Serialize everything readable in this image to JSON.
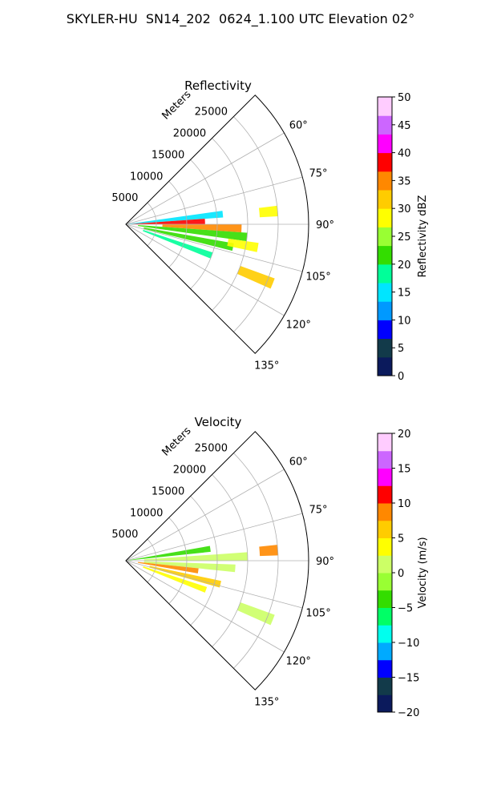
{
  "figure": {
    "title": "SKYLER-HU  SN14_202  0624_1.100 UTC Elevation 02°"
  },
  "chart_data": [
    {
      "type": "heatmap",
      "projection": "polar-sector",
      "title": "Reflectivity",
      "range_label": "Meters",
      "range_ticks": [
        5000,
        10000,
        15000,
        20000,
        25000
      ],
      "range_max": 30000,
      "azimuth_range": [
        45,
        135
      ],
      "azimuth_ticks": [
        "60°",
        "75°",
        "90°",
        "105°",
        "120°",
        "135°"
      ],
      "azimuth_tick_values": [
        60,
        75,
        90,
        105,
        120,
        135
      ],
      "grid": true,
      "colorbar": {
        "label": "Reflectivity dBZ",
        "min": 0,
        "max": 50,
        "ticks": [
          0,
          5,
          10,
          15,
          20,
          25,
          30,
          35,
          40,
          45,
          50
        ],
        "stops": [
          "#0b1a5c",
          "#123a4a",
          "#0000ff",
          "#0099ff",
          "#00e5ff",
          "#00ff99",
          "#33dd00",
          "#99ff33",
          "#ffff00",
          "#ffcc00",
          "#ff8800",
          "#ff0000",
          "#ff00ff",
          "#cc66ff",
          "#ffccff"
        ]
      },
      "echoes": [
        {
          "az": 84,
          "r0": 0,
          "r1": 16000,
          "value": 15
        },
        {
          "az": 88,
          "r0": 1000,
          "r1": 13000,
          "value": 38
        },
        {
          "az": 92,
          "r0": 6000,
          "r1": 19000,
          "value": 35
        },
        {
          "az": 96,
          "r0": 2000,
          "r1": 20000,
          "value": 22
        },
        {
          "az": 102,
          "r0": 3000,
          "r1": 18000,
          "value": 20
        },
        {
          "az": 110,
          "r0": 3000,
          "r1": 15000,
          "value": 18
        },
        {
          "az": 100,
          "r0": 17000,
          "r1": 22000,
          "value": 28
        },
        {
          "az": 85,
          "r0": 22000,
          "r1": 25000,
          "value": 27
        },
        {
          "az": 112,
          "r0": 20000,
          "r1": 26000,
          "value": 30
        }
      ]
    },
    {
      "type": "heatmap",
      "projection": "polar-sector",
      "title": "Velocity",
      "range_label": "Meters",
      "range_ticks": [
        5000,
        10000,
        15000,
        20000,
        25000
      ],
      "range_max": 30000,
      "azimuth_range": [
        45,
        135
      ],
      "azimuth_ticks": [
        "60°",
        "75°",
        "90°",
        "105°",
        "120°",
        "135°"
      ],
      "azimuth_tick_values": [
        60,
        75,
        90,
        105,
        120,
        135
      ],
      "grid": true,
      "colorbar": {
        "label": "Velocity (m/s)",
        "min": -20,
        "max": 20,
        "ticks": [
          -20,
          -15,
          -10,
          -5,
          0,
          5,
          10,
          15,
          20
        ],
        "stops": [
          "#0b1a5c",
          "#123a4a",
          "#0000ff",
          "#00aaff",
          "#00ffee",
          "#00ff66",
          "#33dd00",
          "#99ff33",
          "#ccff66",
          "#ffff00",
          "#ffcc00",
          "#ff8800",
          "#ff0000",
          "#ff00ff",
          "#cc66ff",
          "#ffccff"
        ]
      },
      "echoes": [
        {
          "az": 82,
          "r0": 0,
          "r1": 14000,
          "value": -3
        },
        {
          "az": 88,
          "r0": 3000,
          "r1": 20000,
          "value": 2
        },
        {
          "az": 94,
          "r0": 3000,
          "r1": 18000,
          "value": 1
        },
        {
          "az": 98,
          "r0": 2000,
          "r1": 12000,
          "value": 8
        },
        {
          "az": 104,
          "r0": 4000,
          "r1": 16000,
          "value": 6
        },
        {
          "az": 110,
          "r0": 3000,
          "r1": 14000,
          "value": 3
        },
        {
          "az": 86,
          "r0": 22000,
          "r1": 25000,
          "value": 9
        },
        {
          "az": 112,
          "r0": 20000,
          "r1": 26000,
          "value": 2
        }
      ]
    }
  ]
}
